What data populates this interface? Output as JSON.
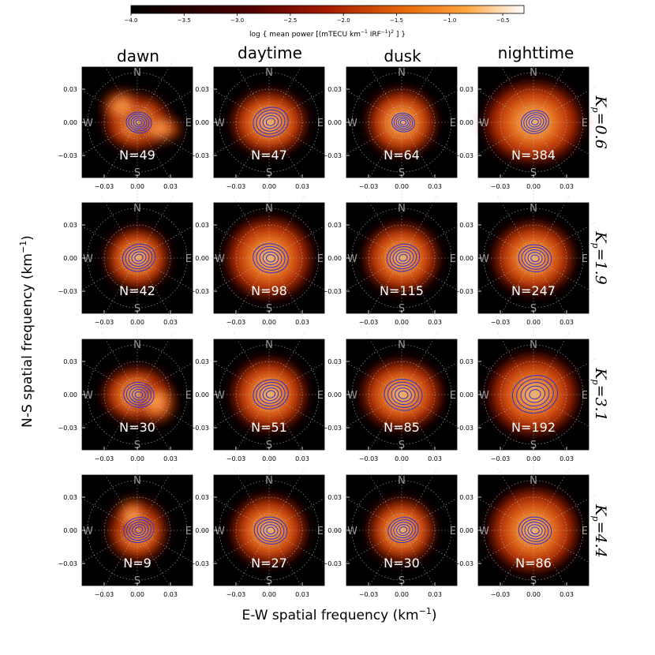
{
  "chart_data": {
    "type": "heatmap",
    "colorbar": {
      "label_prefix": "log { mean power [(mTECU km",
      "label_sup1": "−1",
      "label_mid": " IRF",
      "label_sup2": "−1",
      "label_close": ")",
      "label_sup3": "2",
      "label_suffix": " ] }",
      "range": [
        -4.0,
        -0.3
      ],
      "ticks": [
        -4.0,
        -3.5,
        -3.0,
        -2.5,
        -2.0,
        -1.5,
        -1.0,
        -0.5
      ],
      "tick_labels": [
        "−4.0",
        "−3.5",
        "−3.0",
        "−2.5",
        "−2.0",
        "−1.5",
        "−1.0",
        "−0.5"
      ],
      "colormap": "gist_heat"
    },
    "columns": [
      "dawn",
      "daytime",
      "dusk",
      "nighttime"
    ],
    "rows": [
      {
        "kp_symbol": "K",
        "kp_sub": "p",
        "kp_value": "=0.6"
      },
      {
        "kp_symbol": "K",
        "kp_sub": "p",
        "kp_value": "=1.9"
      },
      {
        "kp_symbol": "K",
        "kp_sub": "p",
        "kp_value": "=3.1"
      },
      {
        "kp_symbol": "K",
        "kp_sub": "p",
        "kp_value": "=4.4"
      }
    ],
    "counts": [
      [
        "N=49",
        "N=47",
        "N=64",
        "N=384"
      ],
      [
        "N=42",
        "N=98",
        "N=115",
        "N=247"
      ],
      [
        "N=30",
        "N=51",
        "N=85",
        "N=192"
      ],
      [
        "N=9",
        "N=27",
        "N=30",
        "N=86"
      ]
    ],
    "compass": {
      "north": "N",
      "south": "S",
      "west": "W",
      "east": "E"
    },
    "axis_range": [
      -0.05,
      0.05
    ],
    "x_ticks": [
      -0.03,
      0.0,
      0.03
    ],
    "y_ticks": [
      0.03,
      0.0,
      -0.03
    ],
    "x_tick_labels": [
      "−0.03",
      "0.00",
      "0.03"
    ],
    "y_tick_labels": [
      "0.03",
      "0.00",
      "−0.03"
    ],
    "xlabel_prefix": "E-W spatial frequency (km",
    "xlabel_sup": "−1",
    "xlabel_suffix": ")",
    "ylabel_prefix": "N-S spatial frequency (km",
    "ylabel_sup": "−1",
    "ylabel_suffix": ")",
    "grid": true,
    "contour_color": "#3030d0"
  }
}
